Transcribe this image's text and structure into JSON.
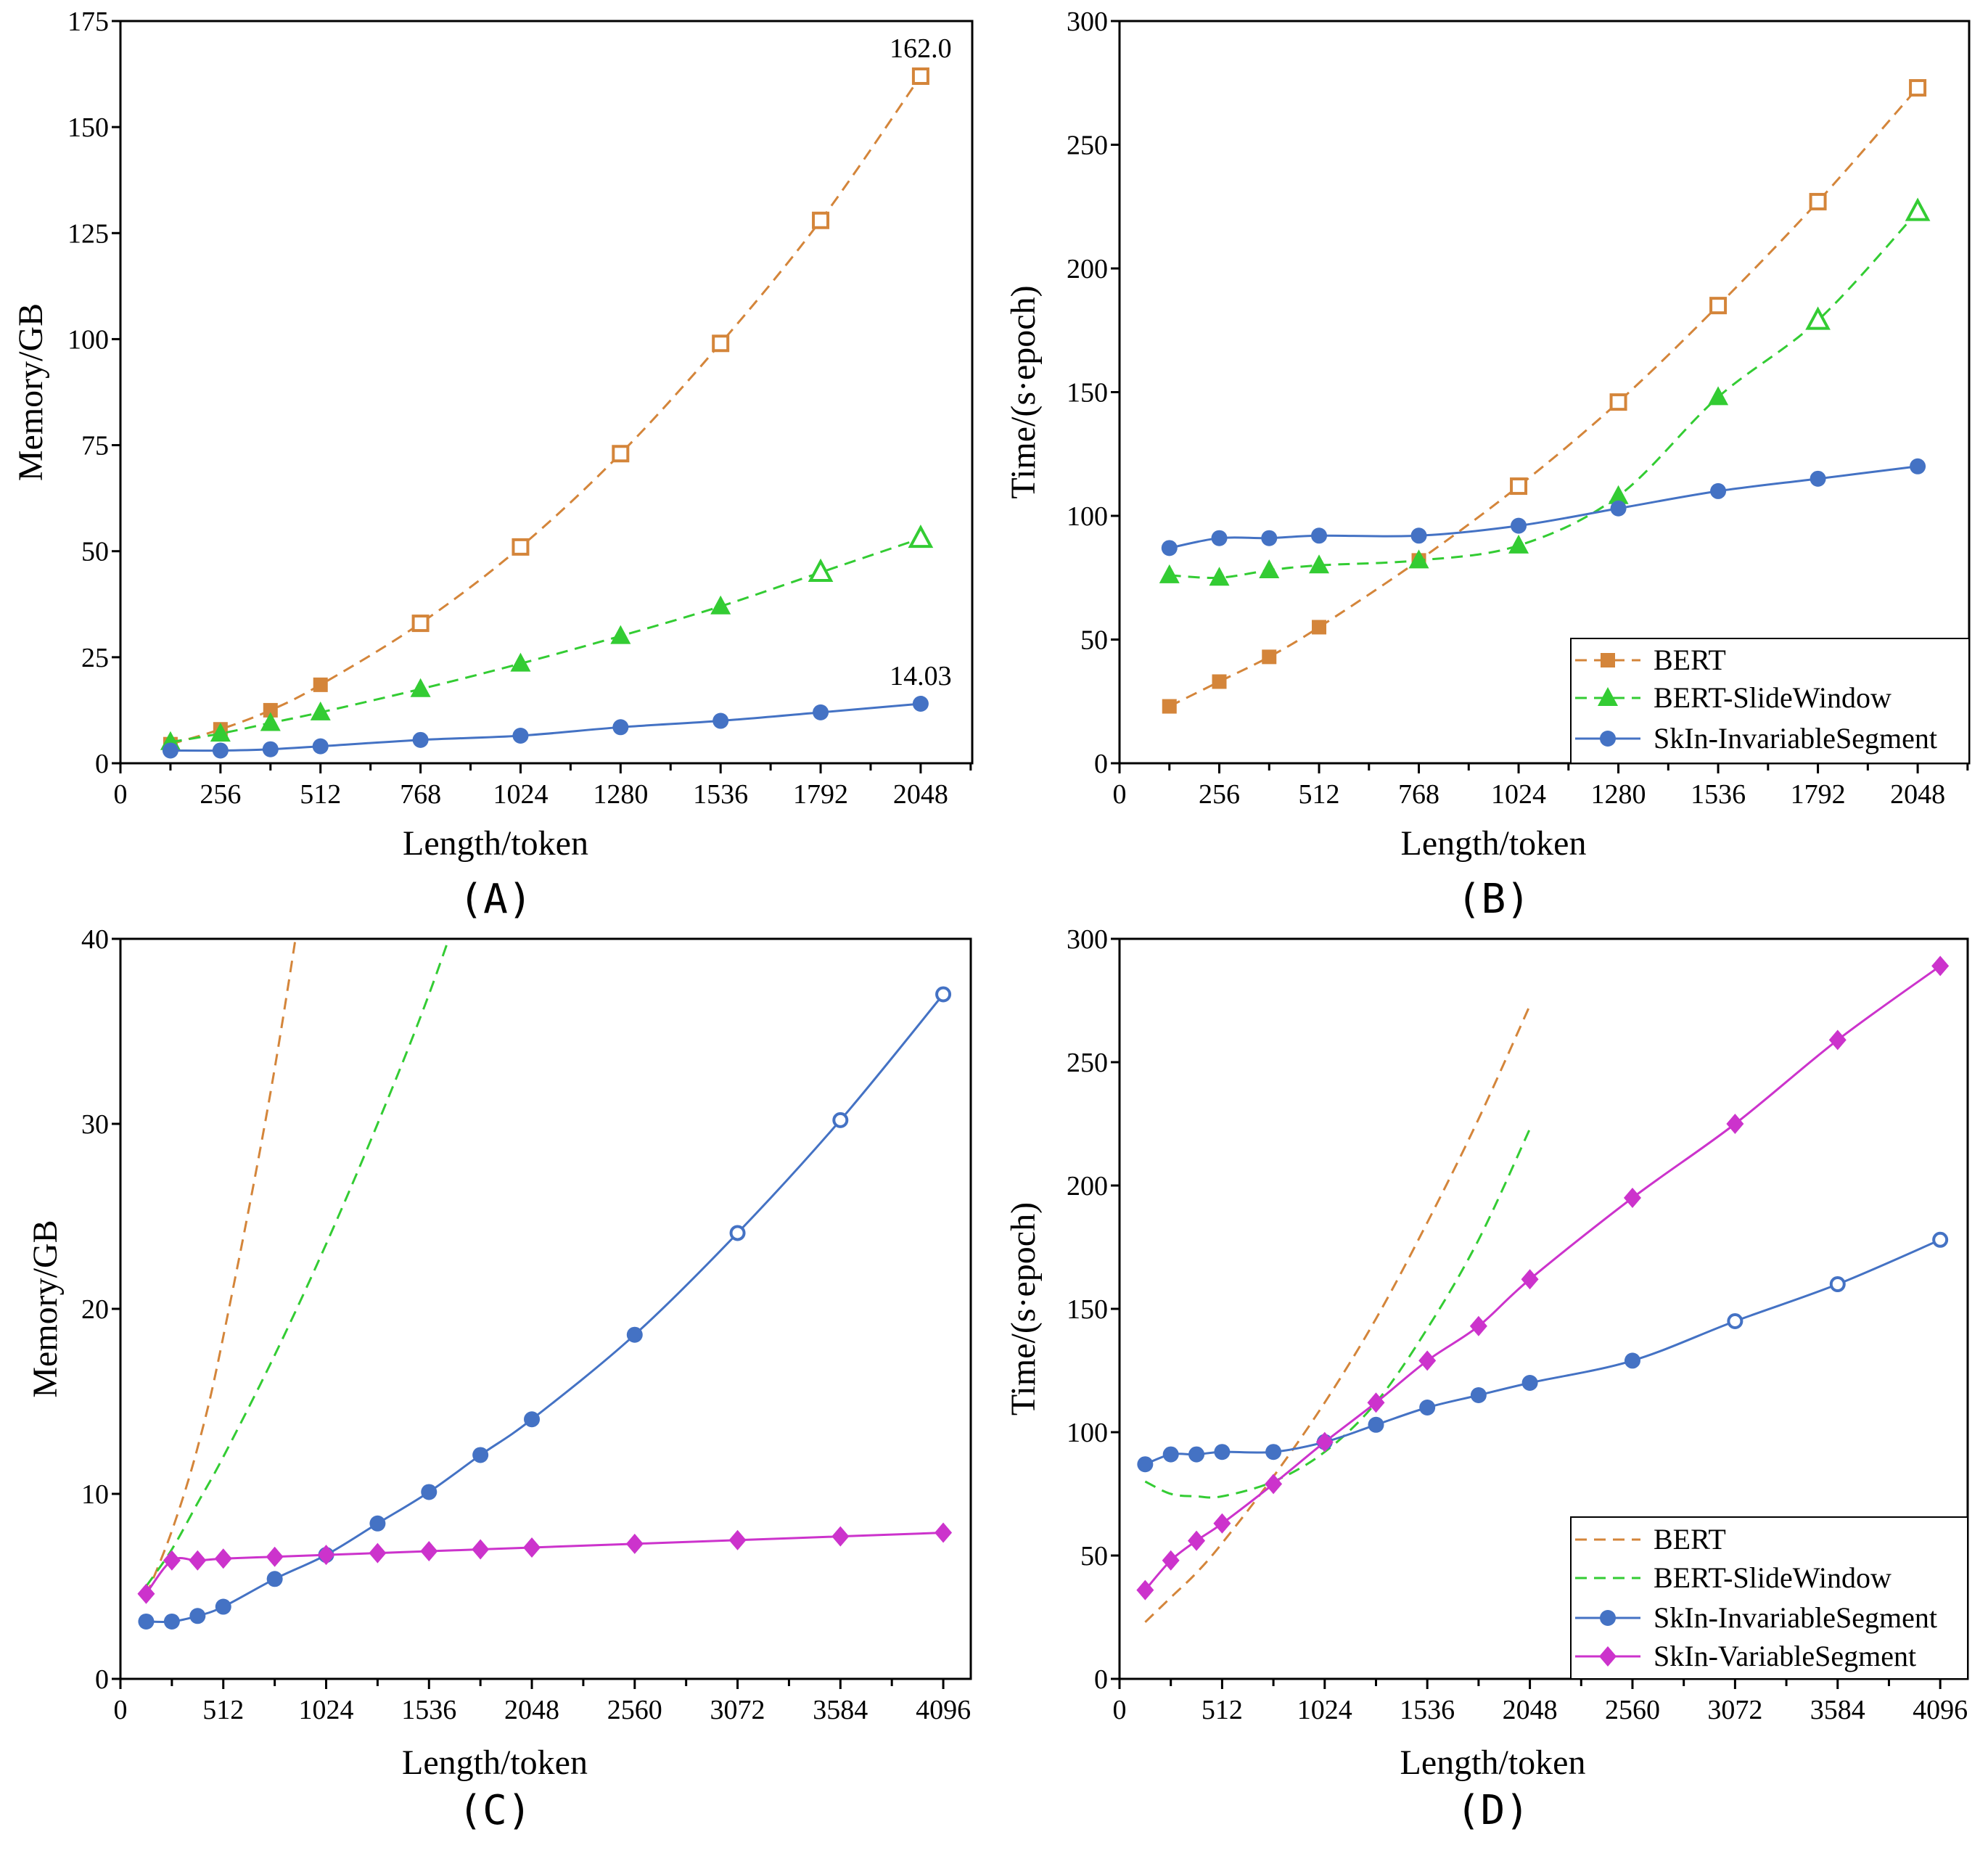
{
  "chart_data": [
    {
      "panel": "(A)",
      "type": "line",
      "xlabel": "Length/token",
      "ylabel": "Memory/GB",
      "xlim": [
        0,
        2180
      ],
      "ylim": [
        0,
        175
      ],
      "x_ticks": [
        0,
        256,
        512,
        768,
        1024,
        1280,
        1536,
        1792,
        2048
      ],
      "y_ticks": [
        0,
        25,
        50,
        75,
        100,
        125,
        150,
        175
      ],
      "grid": false,
      "legend": null,
      "x": [
        128,
        256,
        384,
        512,
        768,
        1024,
        1280,
        1536,
        1792,
        2048
      ],
      "series": [
        {
          "key": "bert",
          "line": "dashed",
          "marker": "square",
          "color": "#D4853A",
          "values": [
            4.5,
            8,
            12.5,
            18.5,
            33,
            51,
            73,
            99,
            128,
            162.0
          ],
          "hollow": [
            false,
            false,
            false,
            false,
            true,
            true,
            true,
            true,
            true,
            true
          ]
        },
        {
          "key": "slidewindow",
          "line": "dashed",
          "marker": "triangle",
          "color": "#33CC33",
          "values": [
            5,
            7,
            9.5,
            12,
            17.5,
            23.5,
            30,
            37,
            45,
            53
          ],
          "hollow": [
            false,
            false,
            false,
            false,
            false,
            false,
            false,
            false,
            true,
            true
          ]
        },
        {
          "key": "invariable",
          "line": "solid",
          "marker": "circle",
          "color": "#4472C4",
          "values": [
            3,
            3,
            3.3,
            4,
            5.5,
            6.5,
            8.5,
            10,
            12,
            14.03
          ],
          "hollow": [
            false,
            false,
            false,
            false,
            false,
            false,
            false,
            false,
            false,
            false
          ]
        }
      ],
      "annotations": [
        {
          "text": "162.0",
          "x": 2048,
          "y": 162.0
        },
        {
          "text": "14.03",
          "x": 2048,
          "y": 14.03
        }
      ]
    },
    {
      "panel": "(B)",
      "type": "line",
      "xlabel": "Length/token",
      "ylabel": "Time/(s·epoch)",
      "xlim": [
        0,
        2180
      ],
      "ylim": [
        0,
        300
      ],
      "x_ticks": [
        0,
        256,
        512,
        768,
        1024,
        1280,
        1536,
        1792,
        2048
      ],
      "y_ticks": [
        0,
        50,
        100,
        150,
        200,
        250,
        300
      ],
      "grid": false,
      "legend": "bottom-right",
      "x": [
        128,
        256,
        384,
        512,
        768,
        1024,
        1280,
        1536,
        1792,
        2048
      ],
      "series": [
        {
          "key": "bert",
          "name": "BERT",
          "line": "dashed",
          "marker": "square",
          "color": "#D4853A",
          "values": [
            23,
            33,
            43,
            55,
            82,
            112,
            146,
            185,
            227,
            273
          ],
          "hollow": [
            false,
            false,
            false,
            false,
            false,
            true,
            true,
            true,
            true,
            true
          ]
        },
        {
          "key": "slidewindow",
          "name": "BERT-SlideWindow",
          "line": "dashed",
          "marker": "triangle",
          "color": "#33CC33",
          "values": [
            76,
            75,
            78,
            80,
            82,
            88,
            108,
            148,
            179,
            223
          ],
          "hollow": [
            false,
            false,
            false,
            false,
            false,
            false,
            false,
            false,
            true,
            true
          ]
        },
        {
          "key": "invariable",
          "name": "SkIn-InvariableSegment",
          "line": "solid",
          "marker": "circle",
          "color": "#4472C4",
          "values": [
            87,
            91,
            91,
            92,
            92,
            96,
            103,
            110,
            115,
            120
          ],
          "hollow": [
            false,
            false,
            false,
            false,
            false,
            false,
            false,
            false,
            false,
            false
          ]
        }
      ],
      "annotations": []
    },
    {
      "panel": "(C)",
      "type": "line",
      "xlabel": "Length/token",
      "ylabel": "Memory/GB",
      "xlim": [
        0,
        4233
      ],
      "ylim": [
        0,
        40
      ],
      "x_ticks": [
        0,
        512,
        1024,
        1536,
        2048,
        2560,
        3072,
        3584,
        4096
      ],
      "y_ticks": [
        0,
        10,
        20,
        30,
        40
      ],
      "grid": false,
      "legend": null,
      "x": [
        128,
        256,
        384,
        512,
        768,
        1024,
        1280,
        1536,
        1792,
        2048,
        2560,
        3072,
        3584,
        4096
      ],
      "series": [
        {
          "key": "bert",
          "line": "dashed",
          "marker": "none",
          "color": "#D4853A",
          "x": [
            128,
            256,
            384,
            512,
            768,
            1024
          ],
          "values": [
            4.5,
            8,
            12.5,
            18.5,
            33,
            51
          ]
        },
        {
          "key": "slidewindow",
          "line": "dashed",
          "marker": "none",
          "color": "#33CC33",
          "x": [
            128,
            256,
            384,
            512,
            768,
            1024,
            1280,
            1536,
            1792
          ],
          "values": [
            5,
            7,
            9.5,
            12,
            17.5,
            23.5,
            30,
            37,
            45
          ]
        },
        {
          "key": "invariable",
          "line": "solid",
          "marker": "circle",
          "color": "#4472C4",
          "values": [
            3.1,
            3.1,
            3.4,
            3.9,
            5.4,
            6.7,
            8.4,
            10.1,
            12.1,
            14.03,
            18.6,
            24.1,
            30.2,
            37.0
          ],
          "hollow": [
            false,
            false,
            false,
            false,
            false,
            false,
            false,
            false,
            false,
            false,
            false,
            true,
            true,
            true
          ]
        },
        {
          "key": "variable",
          "line": "solid",
          "marker": "diamond",
          "color": "#CC33CC",
          "values": [
            4.6,
            6.4,
            6.4,
            6.5,
            6.6,
            6.7,
            6.8,
            6.9,
            7.0,
            7.1,
            7.3,
            7.5,
            7.7,
            7.9
          ],
          "hollow": [
            false,
            false,
            false,
            false,
            false,
            false,
            false,
            false,
            false,
            false,
            false,
            false,
            false,
            false
          ]
        }
      ],
      "annotations": []
    },
    {
      "panel": "(D)",
      "type": "line",
      "xlabel": "Length/token",
      "ylabel": "Time/(s·epoch)",
      "xlim": [
        0,
        4233
      ],
      "ylim": [
        0,
        300
      ],
      "x_ticks": [
        0,
        512,
        1024,
        1536,
        2048,
        2560,
        3072,
        3584,
        4096
      ],
      "y_ticks": [
        0,
        50,
        100,
        150,
        200,
        250,
        300
      ],
      "grid": false,
      "legend": "bottom-right",
      "x": [
        128,
        256,
        384,
        512,
        768,
        1024,
        1280,
        1536,
        1792,
        2048,
        2560,
        3072,
        3584,
        4096
      ],
      "series": [
        {
          "key": "bert",
          "name": "BERT",
          "line": "dashed",
          "marker": "none",
          "color": "#D4853A",
          "x": [
            128,
            256,
            384,
            512,
            768,
            1024,
            1280,
            1536,
            1792,
            2048
          ],
          "values": [
            23,
            33,
            43,
            55,
            82,
            112,
            146,
            185,
            227,
            273
          ]
        },
        {
          "key": "slidewindow",
          "name": "BERT-SlideWindow",
          "line": "dashed",
          "marker": "none",
          "color": "#33CC33",
          "x": [
            128,
            256,
            384,
            512,
            768,
            1024,
            1280,
            1536,
            1792,
            2048
          ],
          "values": [
            80,
            75,
            74,
            74,
            80,
            92,
            112,
            142,
            178,
            223
          ]
        },
        {
          "key": "invariable",
          "name": "SkIn-InvariableSegment",
          "line": "solid",
          "marker": "circle",
          "color": "#4472C4",
          "values": [
            87,
            91,
            91,
            92,
            92,
            96,
            103,
            110,
            115,
            120,
            129,
            145,
            160,
            178
          ],
          "hollow": [
            false,
            false,
            false,
            false,
            false,
            false,
            false,
            false,
            false,
            false,
            false,
            true,
            true,
            true
          ]
        },
        {
          "key": "variable",
          "name": "SkIn-VariableSegment",
          "line": "solid",
          "marker": "diamond",
          "color": "#CC33CC",
          "values": [
            36,
            48,
            56,
            63,
            79,
            96,
            112,
            129,
            143,
            162,
            195,
            225,
            259,
            289
          ],
          "hollow": [
            false,
            false,
            false,
            false,
            false,
            false,
            false,
            false,
            false,
            false,
            false,
            false,
            false,
            false
          ]
        }
      ],
      "annotations": []
    }
  ]
}
